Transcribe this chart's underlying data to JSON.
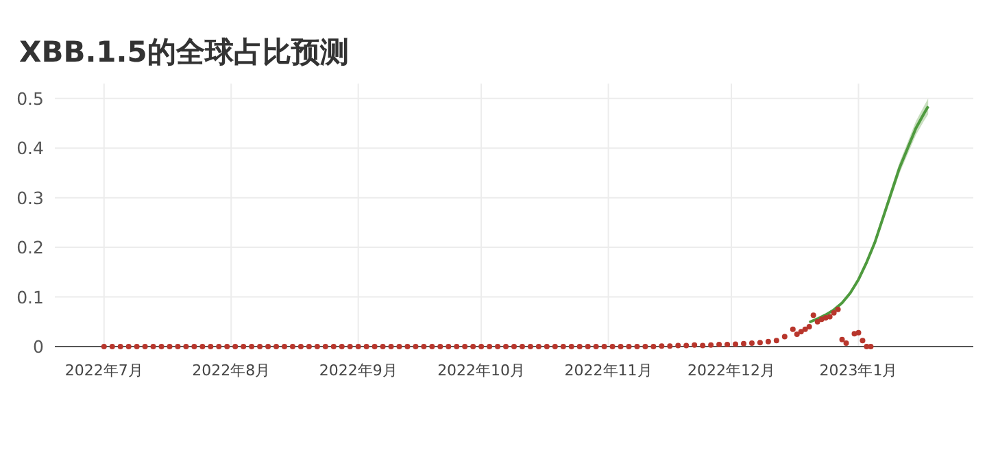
{
  "chart_data": {
    "type": "scatter",
    "title": "XBB.1.5的全球占比预测",
    "series": [
      {
        "color": "#b8362c",
        "marker": "circle",
        "x": [
          "2022-07-01",
          "2022-07-03",
          "2022-07-05",
          "2022-07-07",
          "2022-07-09",
          "2022-07-11",
          "2022-07-13",
          "2022-07-15",
          "2022-07-17",
          "2022-07-19",
          "2022-07-21",
          "2022-07-23",
          "2022-07-25",
          "2022-07-27",
          "2022-07-29",
          "2022-07-31",
          "2022-08-02",
          "2022-08-04",
          "2022-08-06",
          "2022-08-08",
          "2022-08-10",
          "2022-08-12",
          "2022-08-14",
          "2022-08-16",
          "2022-08-18",
          "2022-08-20",
          "2022-08-22",
          "2022-08-24",
          "2022-08-26",
          "2022-08-28",
          "2022-08-30",
          "2022-09-01",
          "2022-09-03",
          "2022-09-05",
          "2022-09-07",
          "2022-09-09",
          "2022-09-11",
          "2022-09-13",
          "2022-09-15",
          "2022-09-17",
          "2022-09-19",
          "2022-09-21",
          "2022-09-23",
          "2022-09-25",
          "2022-09-27",
          "2022-09-29",
          "2022-10-01",
          "2022-10-03",
          "2022-10-05",
          "2022-10-07",
          "2022-10-09",
          "2022-10-11",
          "2022-10-13",
          "2022-10-15",
          "2022-10-17",
          "2022-10-19",
          "2022-10-21",
          "2022-10-23",
          "2022-10-25",
          "2022-10-27",
          "2022-10-29",
          "2022-10-31",
          "2022-11-02",
          "2022-11-04",
          "2022-11-06",
          "2022-11-08",
          "2022-11-10",
          "2022-11-12",
          "2022-11-14",
          "2022-11-16",
          "2022-11-18",
          "2022-11-20",
          "2022-11-22",
          "2022-11-24",
          "2022-11-26",
          "2022-11-28",
          "2022-11-30",
          "2022-12-02",
          "2022-12-04",
          "2022-12-06",
          "2022-12-08",
          "2022-12-10",
          "2022-12-12",
          "2022-12-14",
          "2022-12-16",
          "2022-12-17",
          "2022-12-18",
          "2022-12-19",
          "2022-12-20",
          "2022-12-21",
          "2022-12-22",
          "2022-12-23",
          "2022-12-24",
          "2022-12-25",
          "2022-12-26",
          "2022-12-27",
          "2022-12-28",
          "2022-12-29",
          "2022-12-31",
          "2023-01-01",
          "2023-01-02",
          "2023-01-03",
          "2023-01-04"
        ],
        "values": [
          0,
          0,
          0,
          0,
          0,
          0,
          0,
          0,
          0,
          0,
          0,
          0,
          0,
          0,
          0,
          0,
          0,
          0,
          0,
          0,
          0,
          0,
          0,
          0,
          0,
          0,
          0,
          0,
          0,
          0,
          0,
          0,
          0,
          0,
          0,
          0,
          0,
          0,
          0,
          0,
          0,
          0,
          0,
          0,
          0,
          0,
          0,
          0,
          0,
          0,
          0,
          0,
          0,
          0,
          0,
          0,
          0,
          0,
          0,
          0,
          0,
          0,
          0,
          0,
          0,
          0,
          0,
          0,
          0.001,
          0.001,
          0.002,
          0.002,
          0.003,
          0.002,
          0.003,
          0.004,
          0.004,
          0.005,
          0.006,
          0.007,
          0.008,
          0.01,
          0.012,
          0.02,
          0.035,
          0.025,
          0.03,
          0.035,
          0.04,
          0.063,
          0.05,
          0.055,
          0.058,
          0.06,
          0.068,
          0.075,
          0.014,
          0.007,
          0.026,
          0.028,
          0.012,
          0,
          0
        ]
      },
      {
        "type": "line",
        "color": "#4e9a3e",
        "x": [
          "2022-12-20",
          "2022-12-22",
          "2022-12-24",
          "2022-12-26",
          "2022-12-28",
          "2022-12-30",
          "2023-01-01",
          "2023-01-03",
          "2023-01-05",
          "2023-01-07",
          "2023-01-09",
          "2023-01-11",
          "2023-01-13",
          "2023-01-15",
          "2023-01-17",
          "2023-01-18"
        ],
        "values": [
          0.049,
          0.056,
          0.064,
          0.074,
          0.088,
          0.108,
          0.135,
          0.17,
          0.21,
          0.26,
          0.31,
          0.36,
          0.4,
          0.44,
          0.47,
          0.484
        ],
        "lower": [
          0.047,
          0.054,
          0.062,
          0.071,
          0.085,
          0.104,
          0.13,
          0.164,
          0.203,
          0.252,
          0.3,
          0.349,
          0.388,
          0.426,
          0.455,
          0.468
        ],
        "upper": [
          0.051,
          0.058,
          0.066,
          0.077,
          0.091,
          0.112,
          0.14,
          0.176,
          0.217,
          0.268,
          0.32,
          0.371,
          0.412,
          0.454,
          0.485,
          0.5
        ]
      }
    ],
    "xlim": [
      "2022-06-19",
      "2023-01-29"
    ],
    "xticks": [
      {
        "value": "2022-07-01",
        "label": "2022年7月"
      },
      {
        "value": "2022-08-01",
        "label": "2022年8月"
      },
      {
        "value": "2022-09-01",
        "label": "2022年9月"
      },
      {
        "value": "2022-10-01",
        "label": "2022年10月"
      },
      {
        "value": "2022-11-01",
        "label": "2022年11月"
      },
      {
        "value": "2022-12-01",
        "label": "2022年12月"
      },
      {
        "value": "2023-01-01",
        "label": "2023年1月"
      }
    ],
    "ylim": [
      0,
      0.53
    ],
    "yticks": [
      0,
      0.1,
      0.2,
      0.3,
      0.4,
      0.5
    ],
    "grid": true
  }
}
